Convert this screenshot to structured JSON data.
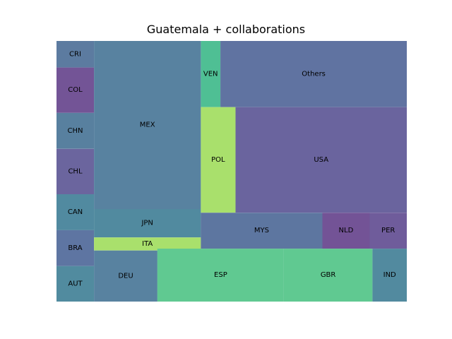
{
  "chart_data": {
    "type": "treemap",
    "title": "Guatemala + collaborations",
    "xlabel": "",
    "ylabel": "",
    "grid": false,
    "legend": "none",
    "tiles": [
      {
        "label": "CRI",
        "x": 0,
        "y": 0,
        "w": 10.7,
        "h": 10.2,
        "color": "#5c7ba0"
      },
      {
        "label": "COL",
        "x": 0,
        "y": 10.2,
        "w": 10.7,
        "h": 17.4,
        "color": "#735496"
      },
      {
        "label": "CHN",
        "x": 0,
        "y": 27.6,
        "w": 10.7,
        "h": 13.8,
        "color": "#58809f"
      },
      {
        "label": "CHL",
        "x": 0,
        "y": 41.4,
        "w": 10.7,
        "h": 17.4,
        "color": "#6b659e"
      },
      {
        "label": "CAN",
        "x": 0,
        "y": 58.8,
        "w": 10.7,
        "h": 13.8,
        "color": "#518aa0"
      },
      {
        "label": "BRA",
        "x": 0,
        "y": 72.6,
        "w": 10.7,
        "h": 13.8,
        "color": "#5e75a2"
      },
      {
        "label": "AUT",
        "x": 0,
        "y": 86.4,
        "w": 10.7,
        "h": 13.6,
        "color": "#518b9f"
      },
      {
        "label": "MEX",
        "x": 10.7,
        "y": 0,
        "w": 30.5,
        "h": 64.5,
        "color": "#5882a0"
      },
      {
        "label": "JPN",
        "x": 10.7,
        "y": 64.5,
        "w": 30.5,
        "h": 10.9,
        "color": "#518a9f"
      },
      {
        "label": "ITA",
        "x": 10.7,
        "y": 75.4,
        "w": 30.5,
        "h": 5.0,
        "color": "#a9e06c"
      },
      {
        "label": "DEU",
        "x": 10.7,
        "y": 80.4,
        "w": 18.1,
        "h": 19.6,
        "color": "#5882a0"
      },
      {
        "label": "VEN",
        "x": 41.2,
        "y": 0,
        "w": 5.6,
        "h": 25.4,
        "color": "#4fbf94"
      },
      {
        "label": "Others",
        "x": 46.8,
        "y": 0,
        "w": 53.2,
        "h": 25.4,
        "color": "#6073a1"
      },
      {
        "label": "POL",
        "x": 41.2,
        "y": 25.4,
        "w": 9.9,
        "h": 40.5,
        "color": "#a9e06c"
      },
      {
        "label": "USA",
        "x": 51.1,
        "y": 25.4,
        "w": 48.9,
        "h": 40.5,
        "color": "#6a649e"
      },
      {
        "label": "MYS",
        "x": 41.2,
        "y": 65.9,
        "w": 34.7,
        "h": 13.8,
        "color": "#5d76a0"
      },
      {
        "label": "NLD",
        "x": 75.9,
        "y": 65.9,
        "w": 13.5,
        "h": 13.8,
        "color": "#735396"
      },
      {
        "label": "PER",
        "x": 89.4,
        "y": 65.9,
        "w": 10.6,
        "h": 13.8,
        "color": "#6f5c9b"
      },
      {
        "label": "ESP",
        "x": 28.8,
        "y": 79.7,
        "w": 36.1,
        "h": 20.3,
        "color": "#60c991"
      },
      {
        "label": "GBR",
        "x": 64.9,
        "y": 79.7,
        "w": 25.3,
        "h": 20.3,
        "color": "#60c991"
      },
      {
        "label": "IND",
        "x": 90.2,
        "y": 79.7,
        "w": 9.8,
        "h": 20.3,
        "color": "#528a9f"
      }
    ]
  }
}
